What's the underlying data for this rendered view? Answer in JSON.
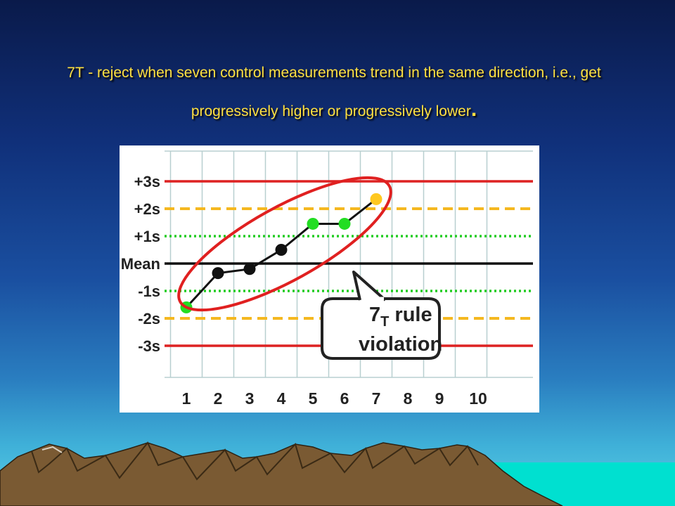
{
  "slide": {
    "title_main": "7T - reject when seven control measurements trend in the same direction, i.e., get progressively higher or progressively lower",
    "title_end": ".",
    "title_color": "#ffe040"
  },
  "chart_data": {
    "type": "line",
    "categories": [
      "1",
      "2",
      "3",
      "4",
      "5",
      "6",
      "7",
      "8",
      "9",
      "10"
    ],
    "y_tick_labels": [
      "+3s",
      "+2s",
      "+1s",
      "Mean",
      "-1s",
      "-2s",
      "-3s"
    ],
    "y_tick_values": [
      3,
      2,
      1,
      0,
      -1,
      -2,
      -3
    ],
    "ylim": [
      -3.5,
      3.5
    ],
    "series": [
      {
        "x": [
          1,
          2,
          3,
          4,
          5,
          6,
          7
        ],
        "values": [
          -1.6,
          -0.35,
          -0.2,
          0.5,
          1.45,
          1.45,
          2.35
        ],
        "point_colors": [
          "#22dd22",
          "#111111",
          "#111111",
          "#111111",
          "#22dd22",
          "#22dd22",
          "#ffc820"
        ]
      }
    ],
    "control_lines": [
      {
        "value": 3,
        "style": "solid",
        "color": "#dd2222"
      },
      {
        "value": 2,
        "style": "dashed",
        "color": "#f5b820"
      },
      {
        "value": 1,
        "style": "dotted",
        "color": "#22cc22"
      },
      {
        "value": 0,
        "style": "solid",
        "color": "#111111"
      },
      {
        "value": -1,
        "style": "dotted",
        "color": "#22cc22"
      },
      {
        "value": -2,
        "style": "dashed",
        "color": "#f5b820"
      },
      {
        "value": -3,
        "style": "solid",
        "color": "#dd2222"
      }
    ],
    "annotation": {
      "main": "7",
      "subscript": "T",
      "rest": " rule",
      "line2": "violation"
    },
    "ellipse_color": "#e02020",
    "grid": true
  }
}
